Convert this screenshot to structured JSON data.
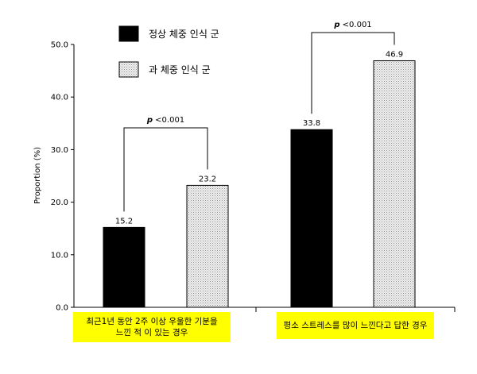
{
  "chart_data": {
    "type": "bar",
    "ylabel": "Proportion (%)",
    "ylim": [
      0,
      50
    ],
    "yticks": [
      "0.0",
      "10.0",
      "20.0",
      "30.0",
      "40.0",
      "50.0"
    ],
    "ytick_values": [
      0,
      10,
      20,
      30,
      40,
      50
    ],
    "grid": false,
    "legend_position": "top-left",
    "categories": [
      [
        "최근1년 동안 2주 이상 우울한 기분을",
        "느낀 적 이 있는 경우"
      ],
      [
        "평소 스트레스를 많이 느낀다고 답한 경우"
      ]
    ],
    "series": [
      {
        "name": "정상 체중 인식 군",
        "values": [
          15.2,
          33.8
        ],
        "labels": [
          "15.2",
          "33.8"
        ],
        "color": "#000000",
        "fill": "solid"
      },
      {
        "name": "과 체중 인식 군",
        "values": [
          23.2,
          46.9
        ],
        "labels": [
          "23.2",
          "46.9"
        ],
        "color": "#e8e8e8",
        "fill": "dotted"
      }
    ],
    "significance": [
      {
        "p": "p",
        "text": " <0.001"
      },
      {
        "p": "p",
        "text": " <0.001"
      }
    ]
  }
}
